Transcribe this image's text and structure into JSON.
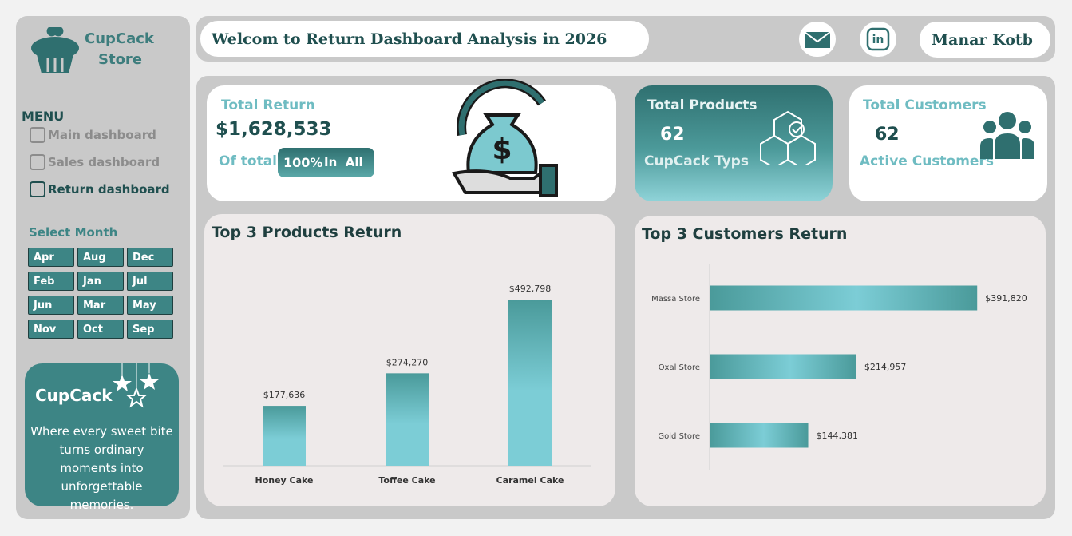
{
  "brand": {
    "line1": "CupCack",
    "line2": "Store"
  },
  "menu": {
    "title": "MENU",
    "items": [
      "Main dashboard",
      "Sales dashboard",
      "Return dashboard"
    ],
    "active": 2
  },
  "month_filter": {
    "title": "Select Month",
    "months": [
      "Apr",
      "Aug",
      "Dec",
      "Feb",
      "Jan",
      "Jul",
      "Jun",
      "Mar",
      "May",
      "Nov",
      "Oct",
      "Sep"
    ]
  },
  "promo": {
    "title": "CupCack",
    "text": "Where every sweet bite turns ordinary moments into unforgettable memories."
  },
  "header": {
    "title": "Welcom to Return Dashboard Analysis in 2026",
    "user": "Manar Kotb"
  },
  "kpis": {
    "total_return": {
      "label": "Total Return",
      "value": "$1,628,533",
      "share_label": "Of total",
      "share": "100%",
      "share_suffix": "In  All"
    },
    "total_products": {
      "label": "Total Products",
      "value": "62",
      "caption": "CupCack Typs"
    },
    "total_customers": {
      "label": "Total Customers",
      "value": "62",
      "caption": "Active Customers"
    }
  },
  "chart_data": [
    {
      "type": "bar",
      "title": "Top 3 Products Return",
      "categories": [
        "Honey Cake",
        "Toffee Cake",
        "Caramel Cake"
      ],
      "values": [
        177636,
        274270,
        492798
      ],
      "value_labels": [
        "$177,636",
        "$274,270",
        "$492,798"
      ],
      "color": "#4a9a9a",
      "ylim": [
        0,
        600000
      ]
    },
    {
      "type": "hbar",
      "title": "Top 3 Customers Return",
      "categories": [
        "Massa Store",
        "Oxal Store",
        "Gold Store"
      ],
      "values": [
        391820,
        214957,
        144381
      ],
      "value_labels": [
        "$391,820",
        "$214,957",
        "$144,381"
      ],
      "color": "#4a9a9a",
      "xlim": [
        0,
        450000
      ]
    }
  ]
}
